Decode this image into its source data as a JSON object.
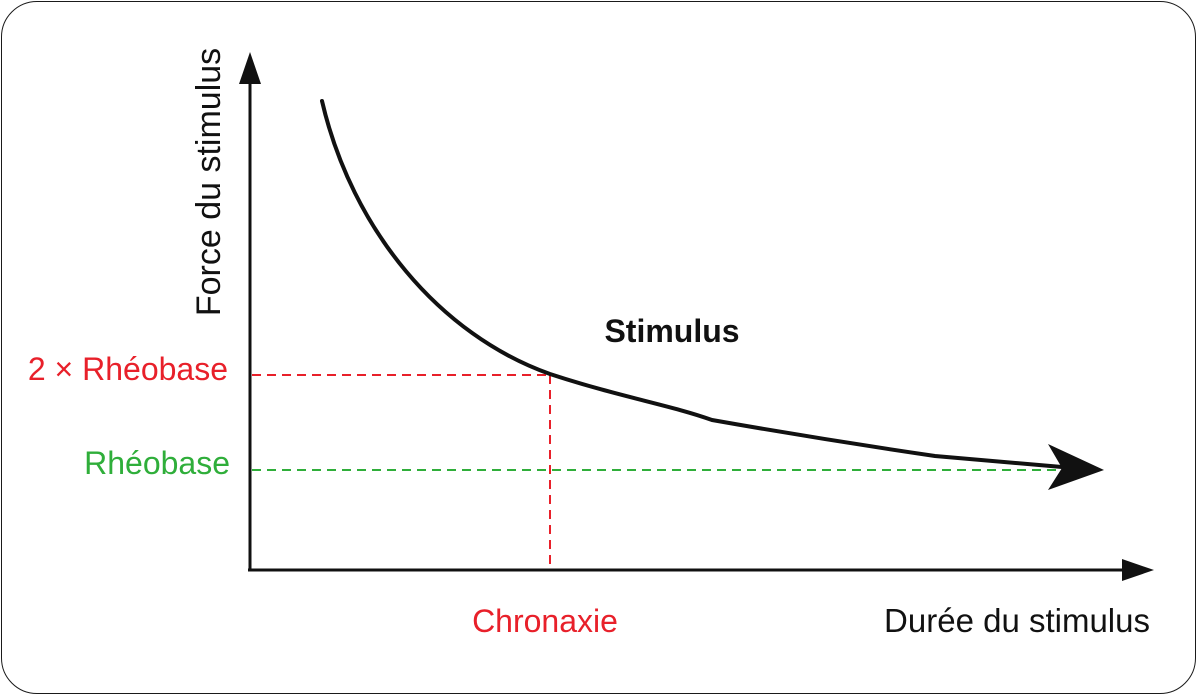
{
  "labels": {
    "y_axis": "Force du stimulus",
    "x_axis": "Durée du stimulus",
    "curve": "Stimulus",
    "double_rheobase": "2 × Rhéobase",
    "rheobase": "Rhéobase",
    "chronaxie": "Chronaxie"
  },
  "colors": {
    "axis": "#111111",
    "curve": "#111111",
    "double_rheobase": "#e8202a",
    "chronaxie": "#e8202a",
    "rheobase": "#2fae3a",
    "frame": "#1a1a1a"
  }
}
